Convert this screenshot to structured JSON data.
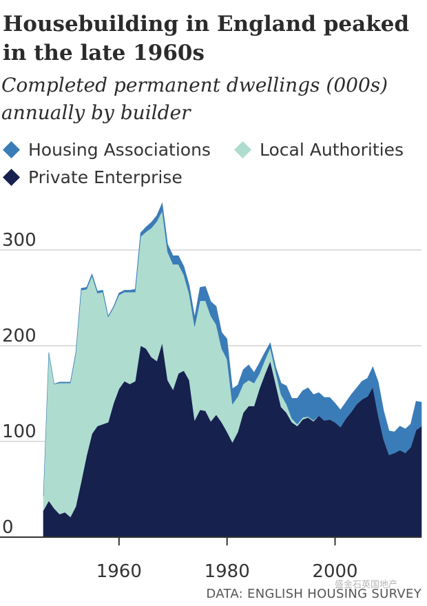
{
  "chart_data": {
    "type": "area",
    "stacked": true,
    "title": "Housebuilding in England peaked in the late 1960s",
    "subtitle": "Completed permanent dwellings (000s) annually by builder",
    "xlabel": "",
    "ylabel": "",
    "xlim": [
      1946,
      2016
    ],
    "ylim": [
      0,
      360
    ],
    "yticks": [
      0,
      100,
      200,
      300
    ],
    "xticks": [
      1960,
      1980,
      2000
    ],
    "grid": "horizontal",
    "legend_position": "top-left",
    "x": [
      1946,
      1947,
      1948,
      1949,
      1950,
      1951,
      1952,
      1953,
      1954,
      1955,
      1956,
      1957,
      1958,
      1959,
      1960,
      1961,
      1962,
      1963,
      1964,
      1965,
      1966,
      1967,
      1968,
      1969,
      1970,
      1971,
      1972,
      1973,
      1974,
      1975,
      1976,
      1977,
      1978,
      1979,
      1980,
      1981,
      1982,
      1983,
      1984,
      1985,
      1986,
      1987,
      1988,
      1989,
      1990,
      1991,
      1992,
      1993,
      1994,
      1995,
      1996,
      1997,
      1998,
      1999,
      2000,
      2001,
      2002,
      2003,
      2004,
      2005,
      2006,
      2007,
      2008,
      2009,
      2010,
      2011,
      2012,
      2013,
      2014,
      2015,
      2016
    ],
    "series": [
      {
        "name": "Private Enterprise",
        "color": "#16214e",
        "values": [
          28,
          38,
          30,
          24,
          26,
          21,
          32,
          58,
          85,
          108,
          116,
          118,
          120,
          140,
          155,
          163,
          160,
          163,
          200,
          197,
          188,
          184,
          203,
          164,
          154,
          171,
          174,
          164,
          122,
          133,
          132,
          121,
          128,
          120,
          110,
          99,
          110,
          130,
          137,
          137,
          155,
          170,
          184,
          160,
          136,
          130,
          120,
          116,
          123,
          125,
          121,
          127,
          122,
          123,
          120,
          115,
          124,
          131,
          139,
          144,
          147,
          157,
          127,
          102,
          86,
          88,
          91,
          88,
          94,
          112,
          116
        ]
      },
      {
        "name": "Local Authorities",
        "color": "#aedccf",
        "values": [
          15,
          155,
          130,
          137,
          135,
          140,
          160,
          200,
          174,
          165,
          139,
          138,
          110,
          100,
          98,
          93,
          96,
          93,
          114,
          122,
          135,
          146,
          138,
          134,
          131,
          114,
          100,
          90,
          98,
          114,
          115,
          110,
          94,
          77,
          76,
          40,
          37,
          30,
          27,
          24,
          16,
          15,
          14,
          13,
          13,
          9,
          4,
          2,
          2,
          1,
          1,
          0,
          0,
          0,
          0,
          0,
          0,
          0,
          0,
          0,
          0,
          0,
          0,
          0,
          0,
          0,
          0,
          0,
          0,
          0,
          0
        ]
      },
      {
        "name": "Housing Associations",
        "color": "#3a7cb8",
        "values": [
          0,
          0,
          0,
          1,
          1,
          1,
          1,
          2,
          2,
          2,
          2,
          2,
          1,
          1,
          2,
          2,
          2,
          3,
          4,
          5,
          6,
          6,
          8,
          8,
          9,
          9,
          9,
          9,
          10,
          14,
          15,
          15,
          19,
          17,
          21,
          16,
          12,
          15,
          16,
          11,
          11,
          8,
          5,
          5,
          12,
          19,
          21,
          27,
          28,
          30,
          27,
          24,
          24,
          23,
          20,
          18,
          17,
          18,
          17,
          19,
          19,
          21,
          35,
          30,
          25,
          22,
          25,
          25,
          24,
          30,
          25
        ]
      }
    ]
  },
  "legend": {
    "items": [
      {
        "label": "Housing Associations",
        "color": "#3a7cb8"
      },
      {
        "label": "Local Authorities",
        "color": "#aedccf"
      },
      {
        "label": "Private Enterprise",
        "color": "#16214e"
      }
    ]
  },
  "source": "DATA: ENGLISH HOUSING SURVEY",
  "watermark": "盛金石英国地产"
}
